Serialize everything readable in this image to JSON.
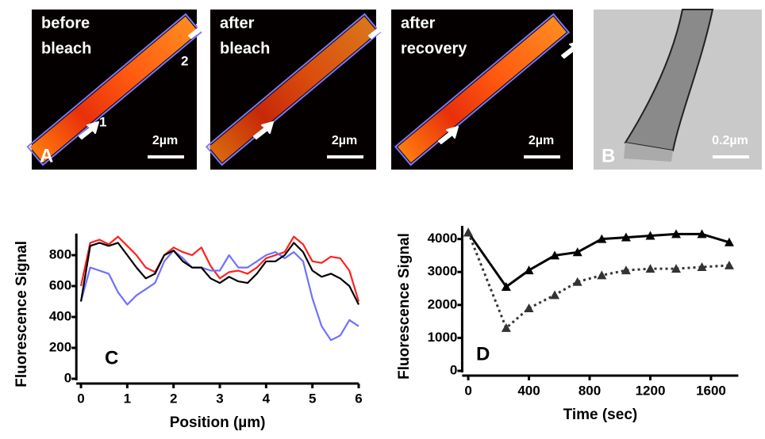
{
  "panels": [
    {
      "caption": [
        "before",
        "bleach"
      ],
      "arrow_labels": [
        "1",
        "2"
      ],
      "scale": "2µm",
      "letter": "A"
    },
    {
      "caption": [
        "after",
        "bleach"
      ],
      "scale": "2µm"
    },
    {
      "caption": [
        "after",
        "recovery"
      ],
      "scale": "2µm"
    },
    {
      "scale": "0.2µm",
      "letter": "B"
    }
  ],
  "chart_data": [
    {
      "type": "line",
      "letter": "C",
      "ylabel": "Fluorescence Signal",
      "xlabel": "Position (µm)",
      "xlim": [
        -0.1,
        6.0
      ],
      "ylim": [
        0,
        940
      ],
      "xticks": [
        0,
        1,
        2,
        3,
        4,
        5,
        6
      ],
      "yticks": [
        0,
        200,
        400,
        600,
        800
      ],
      "x": [
        0,
        0.2,
        0.4,
        0.6,
        0.8,
        1.0,
        1.2,
        1.4,
        1.6,
        1.8,
        2.0,
        2.2,
        2.4,
        2.6,
        2.8,
        3.0,
        3.2,
        3.4,
        3.6,
        3.8,
        4.0,
        4.2,
        4.4,
        4.6,
        4.8,
        5.0,
        5.2,
        5.4,
        5.6,
        5.8,
        6.0
      ],
      "series": [
        {
          "color": "#ff2020",
          "values": [
            600,
            880,
            900,
            870,
            920,
            860,
            800,
            720,
            690,
            800,
            850,
            820,
            800,
            850,
            730,
            650,
            690,
            700,
            680,
            720,
            780,
            800,
            820,
            920,
            870,
            760,
            750,
            790,
            780,
            700,
            500
          ]
        },
        {
          "color": "#7070ff",
          "values": [
            500,
            720,
            700,
            680,
            560,
            480,
            540,
            580,
            620,
            760,
            830,
            780,
            720,
            720,
            700,
            700,
            800,
            720,
            720,
            760,
            800,
            820,
            780,
            820,
            760,
            520,
            340,
            250,
            280,
            380,
            340
          ]
        },
        {
          "color": "#000000",
          "values": [
            500,
            860,
            880,
            860,
            880,
            800,
            720,
            650,
            680,
            800,
            830,
            760,
            720,
            720,
            650,
            620,
            660,
            630,
            620,
            680,
            760,
            760,
            800,
            880,
            820,
            700,
            660,
            680,
            650,
            600,
            480
          ]
        }
      ]
    },
    {
      "type": "line",
      "letter": "D",
      "ylabel": "Fluorescence Signal",
      "xlabel": "Time (sec)",
      "xlim": [
        -40,
        1780
      ],
      "ylim": [
        0,
        4400
      ],
      "xticks": [
        0,
        400,
        800,
        1200,
        1600
      ],
      "yticks": [
        0,
        1000,
        2000,
        3000,
        4000
      ],
      "x": [
        0,
        250,
        400,
        570,
        720,
        880,
        1040,
        1200,
        1370,
        1540,
        1720
      ],
      "series": [
        {
          "color": "#000000",
          "marker": "triangle",
          "values": [
            4200,
            2550,
            3050,
            3500,
            3600,
            4000,
            4050,
            4100,
            4150,
            4150,
            3900
          ]
        },
        {
          "color": "#333333",
          "marker": "triangle",
          "dash": true,
          "values": [
            4200,
            1300,
            1900,
            2300,
            2700,
            2900,
            3050,
            3100,
            3100,
            3150,
            3200
          ]
        }
      ]
    }
  ]
}
